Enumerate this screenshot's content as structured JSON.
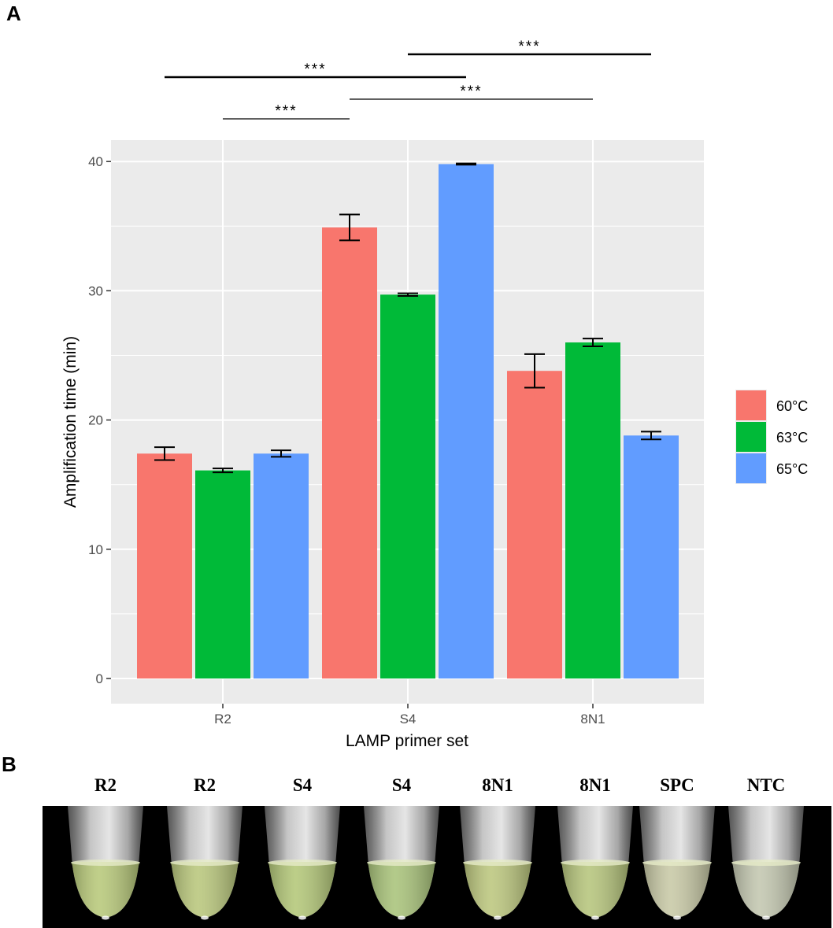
{
  "panel_a_label": "A",
  "panel_b_label": "B",
  "chart_data": {
    "type": "bar",
    "title": "",
    "xlabel": "LAMP primer set",
    "ylabel": "Amplification time (min)",
    "categories": [
      "R2",
      "S4",
      "8N1"
    ],
    "ylim": [
      -2,
      42
    ],
    "yticks": [
      0,
      10,
      20,
      30,
      40
    ],
    "grid": true,
    "legend_position": "right",
    "series": [
      {
        "name": "60°C",
        "color": "#F8766D",
        "values": [
          17.4,
          34.9,
          23.8
        ],
        "errors": [
          0.5,
          1.0,
          1.3
        ]
      },
      {
        "name": "63°C",
        "color": "#00BA38",
        "values": [
          16.1,
          29.7,
          26.0
        ],
        "errors": [
          0.15,
          0.1,
          0.3
        ]
      },
      {
        "name": "65°C",
        "color": "#619CFF",
        "values": [
          17.4,
          39.8,
          18.8
        ],
        "errors": [
          0.25,
          0.05,
          0.3
        ]
      }
    ],
    "significance": [
      {
        "label": "***",
        "from_category": "S4",
        "from_series": 1,
        "to_category": "8N1",
        "to_series": 2
      },
      {
        "label": "***",
        "from_category": "R2",
        "from_series": 0,
        "to_category": "S4",
        "to_series": 2
      },
      {
        "label": "***",
        "from_category": "S4",
        "from_series": 0,
        "to_category": "8N1",
        "to_series": 1
      },
      {
        "label": "***",
        "from_category": "R2",
        "from_series": 1,
        "to_category": "S4",
        "to_series": 0
      }
    ]
  },
  "tubes": {
    "labels": [
      "R2",
      "R2",
      "S4",
      "S4",
      "8N1",
      "8N1",
      "SPC",
      "NTC"
    ],
    "liquid_colors": [
      "#b8c97a",
      "#b9c77c",
      "#b3c778",
      "#a9c37a",
      "#bcc77e",
      "#b6c57c",
      "#c8c9a6",
      "#c3c7b0"
    ]
  }
}
